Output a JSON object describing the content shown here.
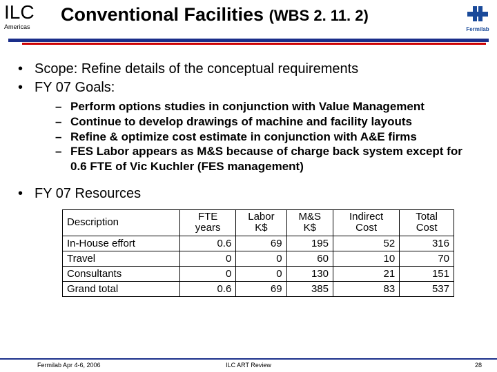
{
  "header": {
    "ilc": "ILC",
    "ilc_sub": "Americas",
    "title_main": "Conventional Facilities ",
    "title_sub": "(WBS 2. 11. 2)",
    "lab_name": "Fermilab"
  },
  "body": {
    "bullets": [
      "Scope: Refine details of the conceptual requirements",
      "FY 07 Goals:",
      "FY 07 Resources"
    ],
    "sub_bullets": [
      "Perform options studies in conjunction with Value Management",
      "Continue to develop drawings of machine and facility layouts",
      "Refine & optimize cost estimate in conjunction with A&E firms",
      "FES Labor appears as M&S because of charge back system except for 0.6 FTE of Vic Kuchler (FES management)"
    ]
  },
  "table": {
    "type": "table",
    "columns": [
      "Description",
      "FTE years",
      "Labor K$",
      "M&S K$",
      "Indirect Cost",
      "Total Cost"
    ],
    "col_align": [
      "left",
      "right",
      "right",
      "right",
      "right",
      "right"
    ],
    "rows": [
      [
        "In-House effort",
        "0.6",
        "69",
        "195",
        "52",
        "316"
      ],
      [
        "Travel",
        "0",
        "0",
        "60",
        "10",
        "70"
      ],
      [
        "Consultants",
        "0",
        "0",
        "130",
        "21",
        "151"
      ],
      [
        "Grand total",
        "0.6",
        "69",
        "385",
        "83",
        "537"
      ]
    ],
    "border_color": "#000000",
    "background_color": "#ffffff",
    "font_size_pt": 12
  },
  "footer": {
    "left": "Fermilab Apr 4-6, 2006",
    "center": "ILC ART Review",
    "page": "28"
  },
  "style": {
    "rule_color_primary": "#1a2e8a",
    "rule_color_accent": "#cc0000",
    "lab_logo_color": "#1a4a9a",
    "body_font": "Arial",
    "title_font_size_pt": 27,
    "bullet_font_size_pt": 20,
    "subbullet_font_size_pt": 17,
    "footer_font_size_pt": 9,
    "page_bg": "#ffffff"
  }
}
